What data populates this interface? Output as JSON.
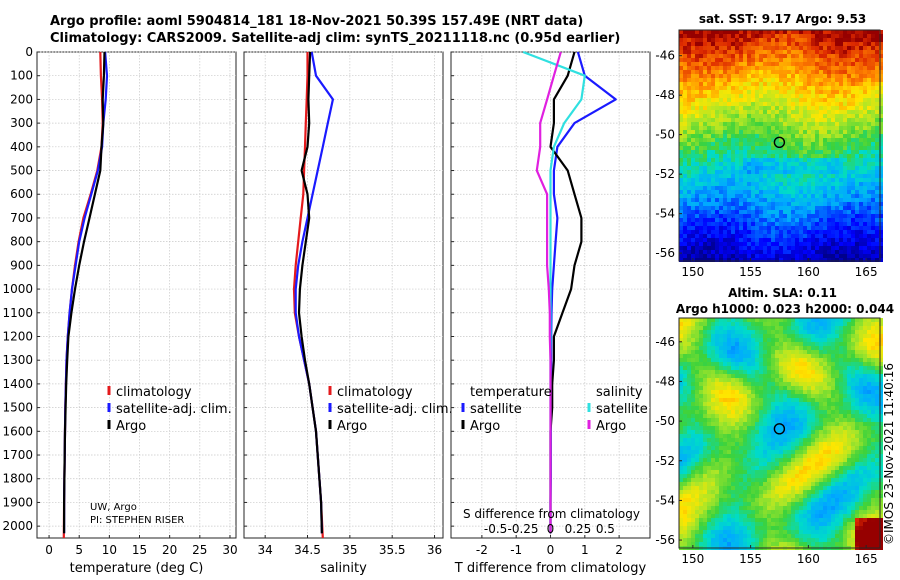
{
  "titles": {
    "line1": "Argo profile: aoml 5904814_181 18-Nov-2021 50.39S 157.49E (NRT data)",
    "line2": "Climatology: CARS2009. Satellite-adj clim: synTS_20211118.nc (0.95d earlier)"
  },
  "credits": {
    "institution": "UW, Argo",
    "pi": "PI: STEPHEN RISER",
    "copyright": "©IMOS 23-Nov-2021 11:40:16"
  },
  "colors": {
    "climatology": "#e41a1c",
    "satellite": "#1a1aff",
    "argo": "#000000",
    "satellite_salinity": "#30e0e0",
    "argo_salinity": "#e020e0"
  },
  "chart_data": [
    {
      "type": "line",
      "xlabel": "temperature (deg C)",
      "xlim": [
        -2,
        31
      ],
      "xticks": [
        "0",
        "5",
        "10",
        "15",
        "20",
        "25",
        "30"
      ],
      "xtick_values": [
        0,
        5,
        10,
        15,
        20,
        25,
        30
      ],
      "ylim": [
        0,
        2050
      ],
      "yticks": [
        "0",
        "100",
        "200",
        "300",
        "400",
        "500",
        "600",
        "700",
        "800",
        "900",
        "1000",
        "1100",
        "1200",
        "1300",
        "1400",
        "1500",
        "1600",
        "1700",
        "1800",
        "1900",
        "2000"
      ],
      "legend": [
        "climatology",
        "satellite-adj. clim.",
        "Argo"
      ],
      "series": [
        {
          "name": "climatology",
          "color_key": "climatology",
          "x": [
            8.5,
            8.6,
            8.8,
            8.9,
            8.7,
            8.0,
            6.9,
            5.7,
            4.9,
            4.3,
            3.8,
            3.4,
            3.1,
            2.9,
            2.8,
            2.7,
            2.65,
            2.6,
            2.55,
            2.5,
            2.45
          ],
          "y": [
            0,
            100,
            200,
            300,
            400,
            500,
            600,
            700,
            800,
            900,
            1000,
            1100,
            1200,
            1300,
            1400,
            1500,
            1600,
            1700,
            1800,
            1900,
            2050
          ]
        },
        {
          "name": "satellite-adj. clim.",
          "color_key": "satellite",
          "x": [
            9.3,
            9.6,
            9.4,
            9.0,
            8.8,
            8.1,
            7.0,
            5.9,
            5.0,
            4.4,
            3.8,
            3.4,
            3.1,
            2.9,
            2.8,
            2.7,
            2.65,
            2.6,
            2.55,
            2.5,
            2.5
          ],
          "y": [
            0,
            100,
            200,
            300,
            400,
            500,
            600,
            700,
            800,
            900,
            1000,
            1100,
            1200,
            1300,
            1400,
            1500,
            1600,
            1700,
            1800,
            1900,
            2030
          ]
        },
        {
          "name": "Argo",
          "color_key": "argo",
          "x": [
            9.2,
            9.1,
            8.9,
            9.0,
            8.7,
            8.5,
            7.6,
            6.7,
            5.8,
            5.0,
            4.3,
            3.7,
            3.2,
            3.0,
            2.85,
            2.75,
            2.65,
            2.6,
            2.55,
            2.5,
            2.5
          ],
          "y": [
            0,
            100,
            200,
            300,
            400,
            500,
            600,
            700,
            800,
            900,
            1000,
            1100,
            1200,
            1300,
            1400,
            1500,
            1600,
            1700,
            1800,
            1900,
            2030
          ]
        }
      ]
    },
    {
      "type": "line",
      "xlabel": "salinity",
      "xlim": [
        33.75,
        36.1
      ],
      "xticks": [
        "34",
        "34.5",
        "35",
        "35.5",
        "36"
      ],
      "xtick_values": [
        34,
        34.5,
        35,
        35.5,
        36
      ],
      "ylim": [
        0,
        2050
      ],
      "legend": [
        "climatology",
        "satellite-adj. clim.",
        "Argo"
      ],
      "series": [
        {
          "name": "climatology",
          "color_key": "climatology",
          "x": [
            34.5,
            34.5,
            34.49,
            34.48,
            34.47,
            34.46,
            34.45,
            34.42,
            34.39,
            34.36,
            34.34,
            34.35,
            34.4,
            34.46,
            34.52,
            34.56,
            34.6,
            34.62,
            34.64,
            34.66,
            34.68
          ],
          "y": [
            0,
            100,
            200,
            300,
            400,
            500,
            600,
            700,
            800,
            900,
            1000,
            1100,
            1200,
            1300,
            1400,
            1500,
            1600,
            1700,
            1800,
            1900,
            2050
          ]
        },
        {
          "name": "satellite-adj. clim.",
          "color_key": "satellite",
          "x": [
            34.55,
            34.6,
            34.8,
            34.74,
            34.68,
            34.62,
            34.56,
            34.5,
            34.44,
            34.39,
            34.36,
            34.36,
            34.4,
            34.46,
            34.52,
            34.56,
            34.6,
            34.62,
            34.64,
            34.66,
            34.67
          ],
          "y": [
            0,
            100,
            200,
            300,
            400,
            500,
            600,
            700,
            800,
            900,
            1000,
            1100,
            1200,
            1300,
            1400,
            1500,
            1600,
            1700,
            1800,
            1900,
            2030
          ]
        },
        {
          "name": "Argo",
          "color_key": "argo",
          "x": [
            34.53,
            34.52,
            34.51,
            34.52,
            34.5,
            34.43,
            34.5,
            34.52,
            34.48,
            34.44,
            34.41,
            34.4,
            34.43,
            34.47,
            34.52,
            34.56,
            34.6,
            34.62,
            34.64,
            34.66,
            34.67
          ],
          "y": [
            0,
            100,
            200,
            300,
            400,
            500,
            600,
            700,
            800,
            900,
            1000,
            1100,
            1200,
            1300,
            1400,
            1500,
            1600,
            1700,
            1800,
            1900,
            2030
          ]
        }
      ]
    },
    {
      "type": "line",
      "xlabel": "T difference from climatology",
      "xlabel2": "S difference from climatology",
      "xlim": [
        -2.9,
        2.9
      ],
      "xticks": [
        "-2",
        "-1",
        "0",
        "1",
        "2"
      ],
      "xtick_values": [
        -2,
        -1,
        0,
        1,
        2
      ],
      "xticks2": [
        "-0.5",
        "-0.25",
        "0",
        "0.25",
        "0.5"
      ],
      "xtick2_values": [
        -1.6,
        -0.8,
        0,
        0.8,
        1.6
      ],
      "ylim": [
        0,
        2050
      ],
      "legend_left_title": "temperature",
      "legend_right_title": "salinity",
      "legend_left": [
        "satellite",
        "Argo"
      ],
      "legend_right": [
        "satellite",
        "Argo"
      ],
      "series": [
        {
          "name": "satellite",
          "color_key": "satellite",
          "x": [
            0.8,
            1.0,
            1.9,
            0.7,
            0.2,
            0.1,
            0.1,
            0.2,
            0.15,
            0.1,
            0.05,
            0.03,
            0.02,
            0.02,
            0.02,
            0.01,
            0.01,
            0.01,
            0.01,
            0.0,
            0.0
          ],
          "y": [
            0,
            100,
            200,
            300,
            400,
            500,
            600,
            700,
            800,
            900,
            1000,
            1100,
            1200,
            1300,
            1400,
            1500,
            1600,
            1700,
            1800,
            1900,
            2030
          ]
        },
        {
          "name": "Argo",
          "color_key": "argo",
          "x": [
            0.7,
            0.5,
            0.1,
            0.1,
            0.0,
            0.5,
            0.7,
            0.9,
            0.9,
            0.7,
            0.6,
            0.35,
            0.1,
            0.1,
            0.05,
            0.05,
            0.0,
            0.0,
            0.0,
            0.0,
            0.0
          ],
          "y": [
            0,
            100,
            200,
            300,
            400,
            500,
            600,
            700,
            800,
            900,
            1000,
            1100,
            1200,
            1300,
            1400,
            1500,
            1600,
            1700,
            1800,
            1900,
            2030
          ]
        },
        {
          "name": "satellite",
          "color_key": "satellite_salinity",
          "x": [
            -0.8,
            1.0,
            0.9,
            0.4,
            0.1,
            0.0,
            0.0,
            0.0,
            0.0,
            0.0,
            0.0,
            0.0,
            0.0,
            0.0,
            0.0,
            0.0,
            0.0,
            0.0,
            0.0,
            0.0,
            0.0
          ],
          "y": [
            0,
            100,
            200,
            300,
            400,
            500,
            600,
            700,
            800,
            900,
            1000,
            1100,
            1200,
            1300,
            1400,
            1500,
            1600,
            1700,
            1800,
            1900,
            2030
          ]
        },
        {
          "name": "Argo",
          "color_key": "argo_salinity",
          "x": [
            0.3,
            0.1,
            -0.1,
            -0.3,
            -0.3,
            -0.4,
            -0.1,
            -0.1,
            -0.1,
            -0.1,
            -0.05,
            -0.02,
            -0.02,
            0.0,
            0.0,
            0.0,
            0.0,
            0.0,
            0.0,
            0.0,
            0.0
          ],
          "y": [
            0,
            100,
            200,
            300,
            400,
            500,
            600,
            700,
            800,
            900,
            1000,
            1100,
            1200,
            1300,
            1400,
            1500,
            1600,
            1700,
            1800,
            1900,
            2030
          ]
        }
      ]
    },
    {
      "type": "heatmap",
      "title": "sat. SST: 9.17 Argo: 9.53",
      "xticks": [
        "150",
        "155",
        "160",
        "165"
      ],
      "xtick_values": [
        150,
        155,
        160,
        165
      ],
      "yticks": [
        "-46",
        "-48",
        "-50",
        "-52",
        "-54",
        "-56"
      ],
      "ytick_values": [
        -46,
        -48,
        -50,
        -52,
        -54,
        -56
      ],
      "xlim": [
        148.8,
        166.2
      ],
      "ylim": [
        -56.4,
        -44.7
      ],
      "marker": {
        "x": 157.49,
        "y": -50.39
      }
    },
    {
      "type": "heatmap",
      "title_line1": "Altim. SLA: 0.11",
      "title_line2": "Argo h1000: 0.023 h2000: 0.044",
      "xticks": [
        "150",
        "155",
        "160",
        "165"
      ],
      "xtick_values": [
        150,
        155,
        160,
        165
      ],
      "yticks": [
        "-46",
        "-48",
        "-50",
        "-52",
        "-54",
        "-56"
      ],
      "ytick_values": [
        -46,
        -48,
        -50,
        -52,
        -54,
        -56
      ],
      "xlim": [
        148.8,
        166.2
      ],
      "ylim": [
        -56.4,
        -44.8
      ],
      "marker": {
        "x": 157.49,
        "y": -50.39
      }
    }
  ]
}
